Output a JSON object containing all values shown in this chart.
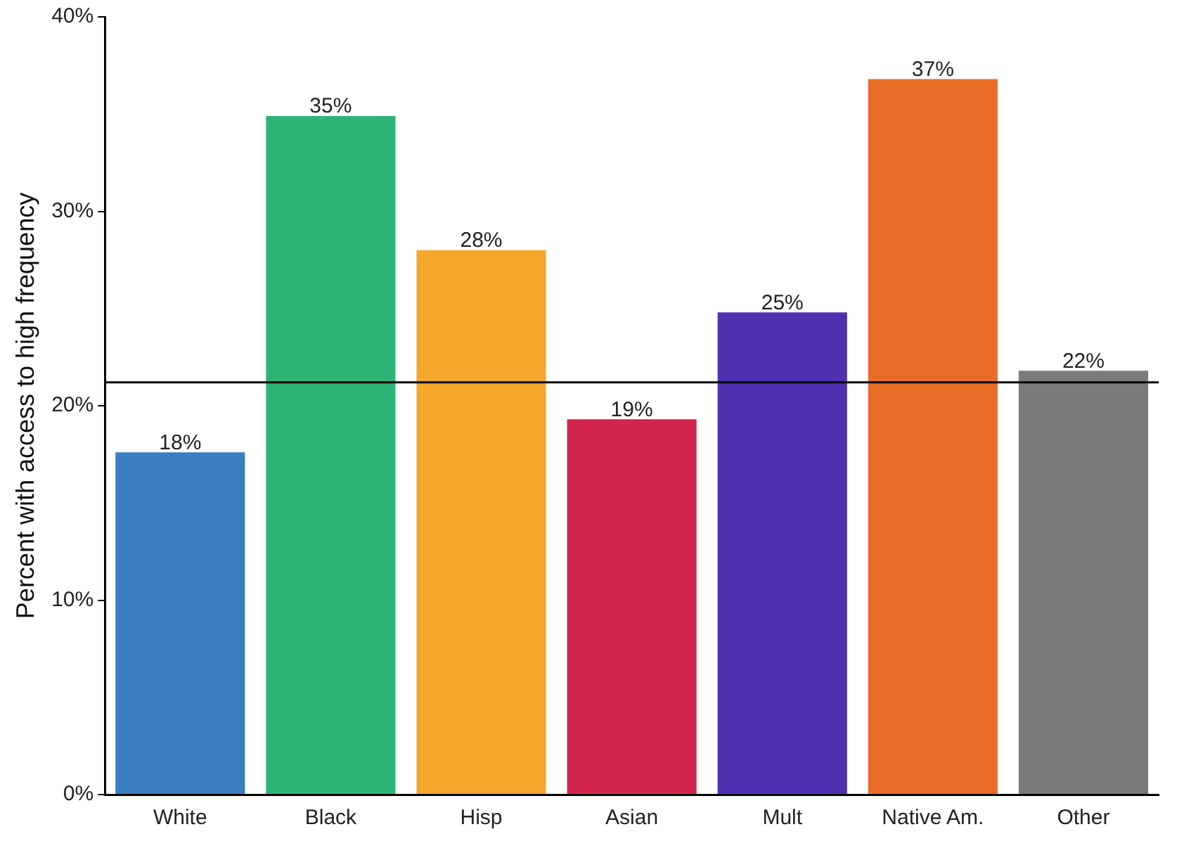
{
  "chart_data": {
    "type": "bar",
    "ylabel": "Percent with access to high frequency",
    "categories": [
      "White",
      "Black",
      "Hisp",
      "Asian",
      "Mult",
      "Native Am.",
      "Other"
    ],
    "values": [
      17.6,
      34.9,
      28.0,
      19.3,
      24.8,
      36.8,
      21.8
    ],
    "colors": [
      "#3a7fc1",
      "#2fb477",
      "#f5a72c",
      "#d2254d",
      "#5030b0",
      "#e86c25",
      "#7a7a7a"
    ],
    "value_labels": [
      "18%",
      "35%",
      "28%",
      "19%",
      "25%",
      "37%",
      "22%"
    ],
    "ylim": [
      0,
      40
    ],
    "yticks": [
      {
        "value": 0,
        "label": "0%"
      },
      {
        "value": 10,
        "label": "10%"
      },
      {
        "value": 20,
        "label": "20%"
      },
      {
        "value": 30,
        "label": "30%"
      },
      {
        "value": 40,
        "label": "40%"
      }
    ],
    "ref_lines": [
      {
        "axis": "y",
        "value": 21.2,
        "color": "#000000"
      }
    ],
    "grid": false,
    "legend": false
  }
}
